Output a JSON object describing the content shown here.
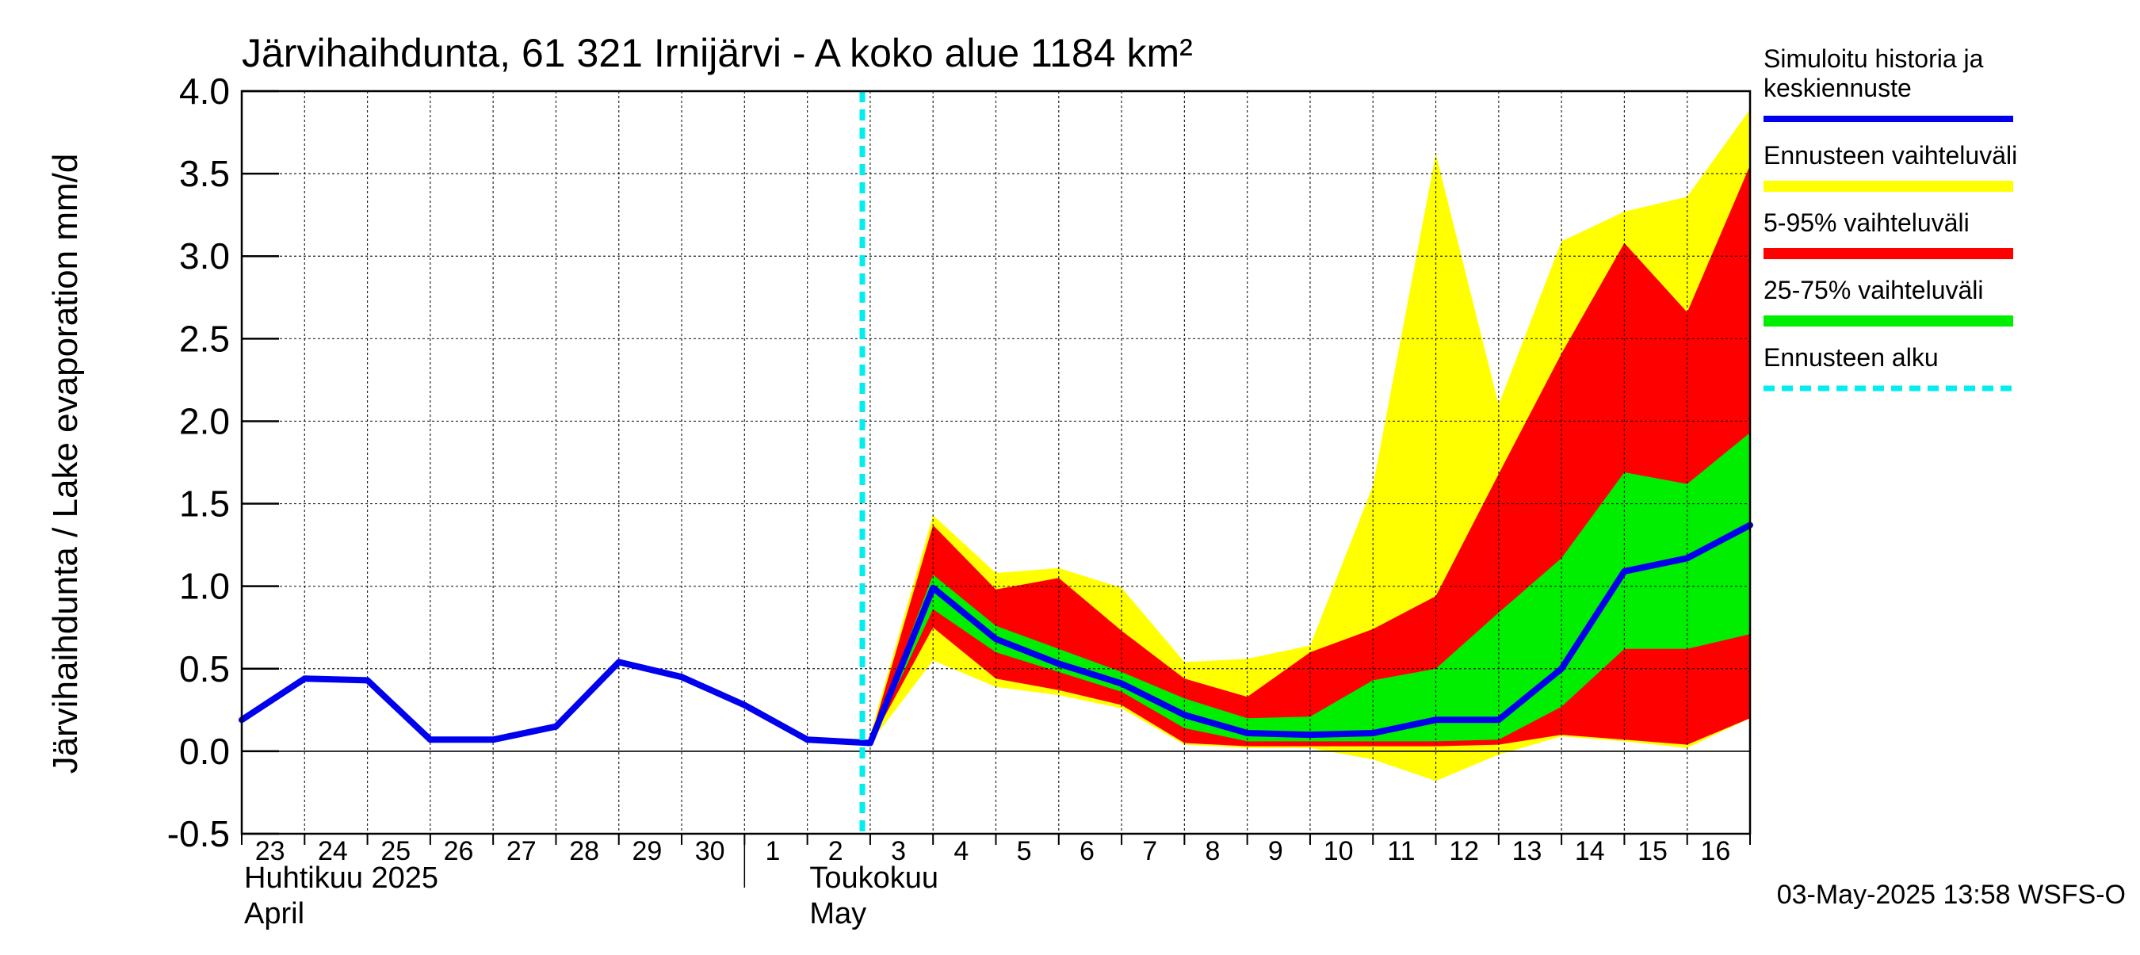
{
  "chart_data": {
    "type": "area",
    "title": "Järvihaihdunta, 61 321 Irnijärvi - A koko alue 1184 km²",
    "ylabel": "Järvihaihdunta / Lake evaporation   mm/d",
    "xlabel": "",
    "ylim": [
      -0.5,
      4.0
    ],
    "yticks": [
      "-0.5",
      "0.0",
      "0.5",
      "1.0",
      "1.5",
      "2.0",
      "2.5",
      "3.0",
      "3.5",
      "4.0"
    ],
    "ytick_values": [
      -0.5,
      0.0,
      0.5,
      1.0,
      1.5,
      2.0,
      2.5,
      3.0,
      3.5,
      4.0
    ],
    "x_dates": [
      "2025-04-23",
      "2025-04-24",
      "2025-04-25",
      "2025-04-26",
      "2025-04-27",
      "2025-04-28",
      "2025-04-29",
      "2025-04-30",
      "2025-05-01",
      "2025-05-02",
      "2025-05-03",
      "2025-05-04",
      "2025-05-05",
      "2025-05-06",
      "2025-05-07",
      "2025-05-08",
      "2025-05-09",
      "2025-05-10",
      "2025-05-11",
      "2025-05-12",
      "2025-05-13",
      "2025-05-14",
      "2025-05-15",
      "2025-05-16",
      "2025-05-17"
    ],
    "day_labels": [
      "23",
      "24",
      "25",
      "26",
      "27",
      "28",
      "29",
      "30",
      "1",
      "2",
      "3",
      "4",
      "5",
      "6",
      "7",
      "8",
      "9",
      "10",
      "11",
      "12",
      "13",
      "14",
      "15",
      "16"
    ],
    "month_labels": [
      {
        "fi": "Huhtikuu  2025",
        "en": "April"
      },
      {
        "fi": "Toukokuu",
        "en": "May"
      }
    ],
    "forecast_start": "2025-05-02 21:00",
    "grid": true,
    "legend_position": "right",
    "legend": [
      {
        "label": "Simuloitu historia ja keskiennuste",
        "lines": [
          "Simuloitu historia ja",
          "keskiennuste"
        ],
        "color": "#0000ee",
        "style": "line"
      },
      {
        "label": "Ennusteen vaihteluväli",
        "lines": [
          "Ennusteen vaihteluväli"
        ],
        "color": "#ffff00",
        "style": "band"
      },
      {
        "label": "5-95% vaihteluväli",
        "lines": [
          "5-95% vaihteluväli"
        ],
        "color": "#ff0000",
        "style": "band"
      },
      {
        "label": "25-75% vaihteluväli",
        "lines": [
          "25-75% vaihteluväli"
        ],
        "color": "#00ee00",
        "style": "band"
      },
      {
        "label": "Ennusteen alku",
        "lines": [
          "Ennusteen alku"
        ],
        "color": "#00eeee",
        "style": "dashed"
      }
    ],
    "series": [
      {
        "name": "Simuloitu historia ja keskiennuste",
        "x": [
          "2025-04-23",
          "2025-04-24",
          "2025-04-25",
          "2025-04-26",
          "2025-04-27",
          "2025-04-28",
          "2025-04-29",
          "2025-04-30",
          "2025-05-01",
          "2025-05-02",
          "2025-05-03",
          "2025-05-04",
          "2025-05-05",
          "2025-05-06",
          "2025-05-07",
          "2025-05-08",
          "2025-05-09",
          "2025-05-10",
          "2025-05-11",
          "2025-05-12",
          "2025-05-13",
          "2025-05-14",
          "2025-05-15",
          "2025-05-16",
          "2025-05-17"
        ],
        "values": [
          0.19,
          0.44,
          0.43,
          0.07,
          0.07,
          0.15,
          0.54,
          0.45,
          0.28,
          0.07,
          0.05,
          0.99,
          0.68,
          0.53,
          0.41,
          0.22,
          0.11,
          0.1,
          0.11,
          0.19,
          0.19,
          0.5,
          1.09,
          1.17,
          1.37
        ]
      }
    ],
    "bands": {
      "x": [
        "2025-05-03",
        "2025-05-04",
        "2025-05-05",
        "2025-05-06",
        "2025-05-07",
        "2025-05-08",
        "2025-05-09",
        "2025-05-10",
        "2025-05-11",
        "2025-05-12",
        "2025-05-13",
        "2025-05-14",
        "2025-05-15",
        "2025-05-16",
        "2025-05-17"
      ],
      "ennusteen_vaihteluvali": {
        "low": [
          0.05,
          0.55,
          0.39,
          0.34,
          0.26,
          0.04,
          0.02,
          0.02,
          -0.05,
          -0.18,
          -0.02,
          0.09,
          0.06,
          0.02,
          0.2
        ],
        "high": [
          0.1,
          1.43,
          1.08,
          1.11,
          0.99,
          0.54,
          0.56,
          0.64,
          1.61,
          3.62,
          2.1,
          3.09,
          3.27,
          3.36,
          3.89
        ]
      },
      "p5_95": {
        "low": [
          0.05,
          0.75,
          0.44,
          0.37,
          0.28,
          0.05,
          0.03,
          0.03,
          0.03,
          0.03,
          0.04,
          0.1,
          0.07,
          0.04,
          0.2
        ],
        "high": [
          0.07,
          1.37,
          0.98,
          1.05,
          0.73,
          0.44,
          0.33,
          0.6,
          0.74,
          0.94,
          1.68,
          2.41,
          3.08,
          2.66,
          3.55
        ]
      },
      "p25_75": {
        "low": [
          0.05,
          0.86,
          0.6,
          0.48,
          0.36,
          0.14,
          0.06,
          0.06,
          0.06,
          0.06,
          0.07,
          0.27,
          0.62,
          0.62,
          0.71
        ],
        "high": [
          0.06,
          1.07,
          0.76,
          0.62,
          0.48,
          0.32,
          0.2,
          0.21,
          0.43,
          0.5,
          0.84,
          1.17,
          1.69,
          1.62,
          1.93
        ]
      }
    }
  },
  "footer": {
    "timestamp": "03-May-2025 13:58 WSFS-O"
  }
}
